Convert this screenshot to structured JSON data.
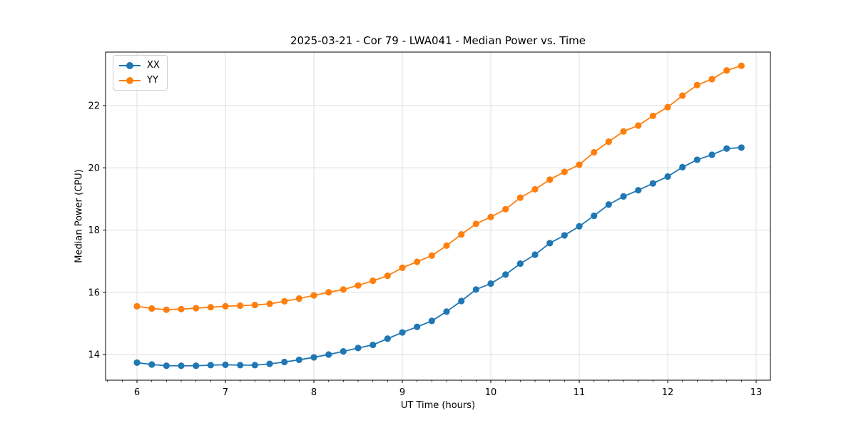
{
  "chart_data": {
    "type": "line",
    "title": "2025-03-21 - Cor 79 - LWA041 - Median Power vs. Time",
    "xlabel": "UT Time (hours)",
    "ylabel": "Median Power (CPU)",
    "grid": true,
    "legend_position": "upper left",
    "xlim": [
      5.645,
      13.161
    ],
    "ylim": [
      13.175,
      23.72
    ],
    "x_ticks": [
      6,
      7,
      8,
      9,
      10,
      11,
      12,
      13
    ],
    "y_ticks": [
      14,
      16,
      18,
      20,
      22
    ],
    "x_minor_tick_step": 0.1667,
    "x": [
      6.0,
      6.167,
      6.333,
      6.5,
      6.667,
      6.833,
      7.0,
      7.167,
      7.333,
      7.5,
      7.667,
      7.833,
      8.0,
      8.167,
      8.333,
      8.5,
      8.667,
      8.833,
      9.0,
      9.167,
      9.333,
      9.5,
      9.667,
      9.833,
      10.0,
      10.167,
      10.333,
      10.5,
      10.667,
      10.833,
      11.0,
      11.167,
      11.333,
      11.5,
      11.667,
      11.833,
      12.0,
      12.167,
      12.333,
      12.5,
      12.667,
      12.833
    ],
    "series": [
      {
        "name": "XX",
        "color": "#1f77b4",
        "marker": "circle",
        "values": [
          13.74,
          13.68,
          13.64,
          13.64,
          13.64,
          13.66,
          13.67,
          13.66,
          13.66,
          13.7,
          13.76,
          13.83,
          13.91,
          14.0,
          14.1,
          14.21,
          14.31,
          14.51,
          14.71,
          14.89,
          15.08,
          15.38,
          15.72,
          16.09,
          16.28,
          16.57,
          16.92,
          17.21,
          17.58,
          17.83,
          18.12,
          18.46,
          18.82,
          19.08,
          19.28,
          19.5,
          19.72,
          20.02,
          20.26,
          20.42,
          20.62,
          20.65
        ]
      },
      {
        "name": "YY",
        "color": "#ff7f0e",
        "marker": "circle",
        "values": [
          15.55,
          15.48,
          15.44,
          15.46,
          15.49,
          15.52,
          15.55,
          15.57,
          15.59,
          15.63,
          15.71,
          15.8,
          15.9,
          16.0,
          16.09,
          16.22,
          16.37,
          16.53,
          16.79,
          16.98,
          17.18,
          17.5,
          17.86,
          18.2,
          18.42,
          18.67,
          19.04,
          19.31,
          19.62,
          19.87,
          20.1,
          20.5,
          20.84,
          21.17,
          21.36,
          21.67,
          21.95,
          22.32,
          22.66,
          22.85,
          23.13,
          23.28
        ]
      }
    ]
  },
  "legend": {
    "items": [
      {
        "label": "XX"
      },
      {
        "label": "YY"
      }
    ]
  }
}
